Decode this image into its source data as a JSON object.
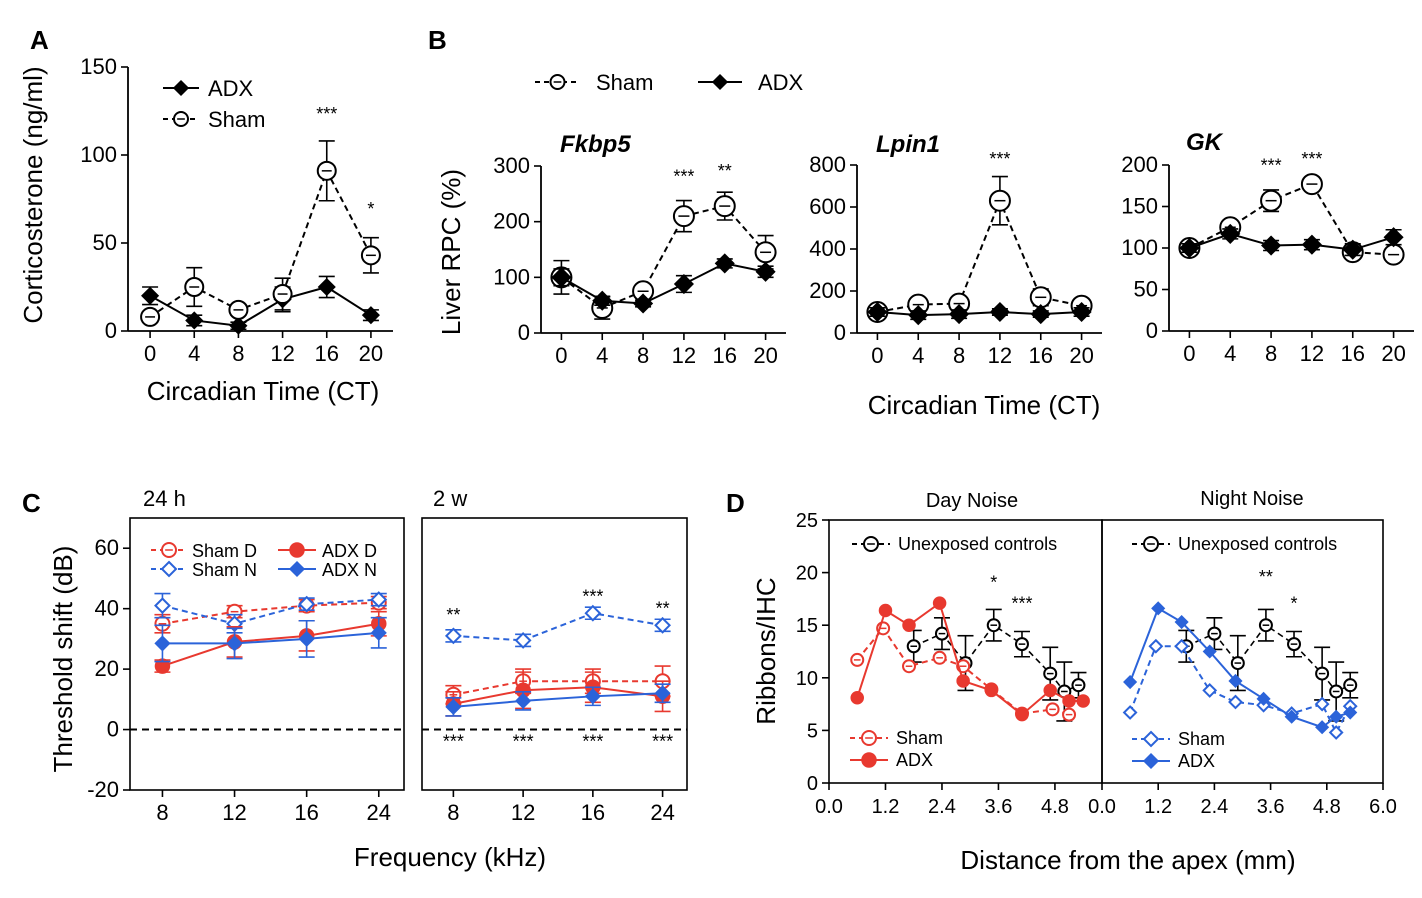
{
  "colors": {
    "black": "#000000",
    "red": "#e8392f",
    "blue": "#2b63d9"
  },
  "panel_labels": {
    "A": "A",
    "B": "B",
    "C": "C",
    "D": "D"
  },
  "shared": {
    "circadian_xlabel": "Circadian Time (CT)",
    "liver_ylabel": "Liver RPC (%)",
    "frequency_xlabel": "Frequency (kHz)",
    "apex_xlabel": "Distance from the apex (mm)",
    "legend_sham": "Sham",
    "legend_adx": "ADX"
  },
  "chart_data": [
    {
      "id": "A",
      "type": "line",
      "xlabel": "Circadian Time (CT)",
      "ylabel": "Corticosterone (ng/ml)",
      "xlim": [
        -2,
        22
      ],
      "ylim": [
        0,
        150
      ],
      "xticks": [
        0,
        4,
        8,
        12,
        16,
        20
      ],
      "yticks": [
        0,
        50,
        100,
        150
      ],
      "legend": [
        "ADX",
        "Sham"
      ],
      "series": [
        {
          "name": "ADX",
          "x": [
            0,
            4,
            8,
            12,
            16,
            20
          ],
          "values": [
            20,
            6,
            3,
            18,
            25,
            9
          ],
          "err": [
            5,
            3,
            2,
            7,
            6,
            3
          ]
        },
        {
          "name": "Sham",
          "x": [
            0,
            4,
            8,
            12,
            16,
            20
          ],
          "values": [
            8,
            25,
            12,
            21,
            91,
            43
          ],
          "err": [
            3,
            11,
            3,
            9,
            17,
            10
          ]
        }
      ],
      "annotations": [
        {
          "x": 16,
          "y": 120,
          "text": "***"
        },
        {
          "x": 20,
          "y": 66,
          "text": "*"
        }
      ]
    },
    {
      "id": "B1",
      "type": "line",
      "gene": "Fkbp5",
      "ylabel": "Liver RPC (%)",
      "xlim": [
        -2,
        22
      ],
      "ylim": [
        0,
        300
      ],
      "xticks": [
        0,
        4,
        8,
        12,
        16,
        20
      ],
      "yticks": [
        0,
        100,
        200,
        300
      ],
      "series": [
        {
          "name": "Sham",
          "x": [
            0,
            4,
            8,
            12,
            16,
            20
          ],
          "values": [
            100,
            45,
            75,
            210,
            228,
            145
          ],
          "err": [
            30,
            20,
            12,
            28,
            25,
            30
          ]
        },
        {
          "name": "ADX",
          "x": [
            0,
            4,
            8,
            12,
            16,
            20
          ],
          "values": [
            100,
            58,
            53,
            88,
            125,
            110
          ],
          "err": [
            15,
            8,
            6,
            15,
            8,
            10
          ]
        }
      ],
      "annotations": [
        {
          "x": 12,
          "y": 270,
          "text": "***"
        },
        {
          "x": 16,
          "y": 280,
          "text": "**"
        }
      ]
    },
    {
      "id": "B2",
      "type": "line",
      "gene": "Lpin1",
      "xlim": [
        -2,
        22
      ],
      "ylim": [
        0,
        800
      ],
      "xticks": [
        0,
        4,
        8,
        12,
        16,
        20
      ],
      "yticks": [
        0,
        200,
        400,
        600,
        800
      ],
      "series": [
        {
          "name": "Sham",
          "x": [
            0,
            4,
            8,
            12,
            16,
            20
          ],
          "values": [
            100,
            135,
            140,
            630,
            170,
            130
          ],
          "err": [
            15,
            15,
            20,
            115,
            40,
            15
          ]
        },
        {
          "name": "ADX",
          "x": [
            0,
            4,
            8,
            12,
            16,
            20
          ],
          "values": [
            100,
            85,
            90,
            100,
            90,
            100
          ],
          "err": [
            20,
            20,
            20,
            15,
            15,
            20
          ]
        }
      ],
      "annotations": [
        {
          "x": 12,
          "y": 800,
          "text": "***"
        }
      ]
    },
    {
      "id": "B3",
      "type": "line",
      "gene": "GK",
      "xlim": [
        -2,
        22
      ],
      "ylim": [
        0,
        200
      ],
      "xticks": [
        0,
        4,
        8,
        12,
        16,
        20
      ],
      "yticks": [
        0,
        50,
        100,
        150,
        200
      ],
      "series": [
        {
          "name": "Sham",
          "x": [
            0,
            4,
            8,
            12,
            16,
            20
          ],
          "values": [
            100,
            125,
            157,
            177,
            95,
            92
          ],
          "err": [
            5,
            5,
            13,
            5,
            5,
            5
          ]
        },
        {
          "name": "ADX",
          "x": [
            0,
            4,
            8,
            12,
            16,
            20
          ],
          "values": [
            100,
            117,
            103,
            104,
            98,
            113
          ],
          "err": [
            5,
            6,
            6,
            6,
            7,
            9
          ]
        }
      ],
      "annotations": [
        {
          "x": 8,
          "y": 192,
          "text": "***"
        },
        {
          "x": 12,
          "y": 200,
          "text": "***"
        }
      ]
    },
    {
      "id": "C1",
      "type": "line",
      "title": "24 h",
      "ylabel": "Threshold shift (dB)",
      "xlim": [
        -0.45,
        3.35
      ],
      "ylim": [
        -20,
        70
      ],
      "xticks": [
        8,
        12,
        16,
        24
      ],
      "yticks": [
        -20,
        0,
        20,
        40,
        60
      ],
      "zero_line": true,
      "legend": [
        "Sham D",
        "Sham N",
        "ADX D",
        "ADX N"
      ],
      "series": [
        {
          "name": "Sham D",
          "x": [
            8,
            12,
            16,
            24
          ],
          "values": [
            35,
            39,
            41,
            42
          ],
          "err": [
            3,
            2,
            2,
            2
          ]
        },
        {
          "name": "Sham N",
          "x": [
            8,
            12,
            16,
            24
          ],
          "values": [
            41,
            35,
            41.5,
            43
          ],
          "err": [
            4,
            3,
            2,
            2
          ]
        },
        {
          "name": "ADX D",
          "x": [
            8,
            12,
            16,
            24
          ],
          "values": [
            21,
            29,
            31,
            35
          ],
          "err": [
            2,
            5,
            5,
            4
          ]
        },
        {
          "name": "ADX N",
          "x": [
            8,
            12,
            16,
            24
          ],
          "values": [
            28.5,
            28.5,
            30,
            32
          ],
          "err": [
            6,
            5,
            6,
            5
          ]
        }
      ],
      "annotations": []
    },
    {
      "id": "C2",
      "type": "line",
      "title": "2 w",
      "xlim": [
        -0.45,
        3.35
      ],
      "ylim": [
        -20,
        70
      ],
      "xticks": [
        8,
        12,
        16,
        24
      ],
      "zero_line": true,
      "series": [
        {
          "name": "Sham D",
          "x": [
            8,
            12,
            16,
            24
          ],
          "values": [
            11.5,
            16,
            16,
            16
          ],
          "err": [
            3,
            4,
            4,
            5
          ]
        },
        {
          "name": "Sham N",
          "x": [
            8,
            12,
            16,
            24
          ],
          "values": [
            31,
            29.5,
            38.5,
            34.5
          ],
          "err": [
            2,
            2,
            2,
            2
          ]
        },
        {
          "name": "ADX D",
          "x": [
            8,
            12,
            16,
            24
          ],
          "values": [
            8.5,
            13,
            14,
            11
          ],
          "err": [
            4,
            6,
            5,
            5
          ]
        },
        {
          "name": "ADX N",
          "x": [
            8,
            12,
            16,
            24
          ],
          "values": [
            7.5,
            9.5,
            11,
            12
          ],
          "err": [
            3,
            3,
            3,
            3
          ]
        }
      ],
      "annotations": [
        {
          "x": 8,
          "y": 36,
          "text": "**"
        },
        {
          "x": 16,
          "y": 42,
          "text": "***"
        },
        {
          "x": 24,
          "y": 38,
          "text": "**"
        },
        {
          "x": 8,
          "y": -6,
          "text": "***"
        },
        {
          "x": 12,
          "y": -6,
          "text": "***"
        },
        {
          "x": 16,
          "y": -6,
          "text": "***"
        },
        {
          "x": 24,
          "y": -6,
          "text": "***"
        }
      ]
    },
    {
      "id": "D1",
      "type": "line",
      "title": "Day Noise",
      "ylabel": "Ribbons/IHC",
      "xlim": [
        0,
        5.8
      ],
      "ylim": [
        0,
        25
      ],
      "xticks": [
        0.0,
        1.2,
        2.4,
        3.6,
        4.8
      ],
      "yticks": [
        0,
        5,
        10,
        15,
        20,
        25
      ],
      "legend": [
        "Unexposed controls",
        "Sham",
        "ADX"
      ],
      "series": [
        {
          "name": "Unexposed controls",
          "x": [
            1.8,
            2.4,
            2.9,
            3.5,
            4.1,
            4.7,
            5.0,
            5.3
          ],
          "values": [
            13.0,
            14.2,
            11.4,
            15.0,
            13.2,
            10.4,
            8.7,
            9.3
          ],
          "err": [
            1.5,
            1.5,
            2.6,
            1.5,
            1.2,
            2.5,
            2.8,
            1.2
          ]
        },
        {
          "name": "Sham",
          "x": [
            0.6,
            1.15,
            1.7,
            2.35,
            2.85,
            3.45,
            4.1,
            4.75,
            5.1
          ],
          "values": [
            11.7,
            14.7,
            11.1,
            11.9,
            11.1,
            8.9,
            6.6,
            7.0,
            6.5
          ]
        },
        {
          "name": "ADX",
          "x": [
            0.6,
            1.2,
            1.7,
            2.35,
            2.85,
            3.45,
            4.1,
            4.7,
            5.1,
            5.4
          ],
          "values": [
            8.1,
            16.4,
            15.0,
            17.1,
            9.7,
            8.8,
            6.5,
            8.8,
            7.8,
            7.8
          ]
        }
      ],
      "annotations": [
        {
          "x": 3.5,
          "y": 18.5,
          "text": "*"
        },
        {
          "x": 4.1,
          "y": 16.5,
          "text": "***"
        }
      ]
    },
    {
      "id": "D2",
      "type": "line",
      "title": "Night Noise",
      "xlim": [
        0,
        6.0
      ],
      "ylim": [
        0,
        25
      ],
      "xticks": [
        0.0,
        1.2,
        2.4,
        3.6,
        4.8,
        6.0
      ],
      "legend": [
        "Unexposed controls",
        "Sham",
        "ADX"
      ],
      "series": [
        {
          "name": "Unexposed controls",
          "x": [
            1.8,
            2.4,
            2.9,
            3.5,
            4.1,
            4.7,
            5.0,
            5.3
          ],
          "values": [
            13.0,
            14.2,
            11.4,
            15.0,
            13.2,
            10.4,
            8.7,
            9.3
          ],
          "err": [
            1.5,
            1.5,
            2.6,
            1.5,
            1.2,
            2.5,
            2.8,
            1.2
          ]
        },
        {
          "name": "Sham",
          "x": [
            0.6,
            1.15,
            1.7,
            2.3,
            2.85,
            3.45,
            4.05,
            4.7,
            5.0,
            5.3
          ],
          "values": [
            6.7,
            13.0,
            13.0,
            8.8,
            7.7,
            7.4,
            6.6,
            7.5,
            4.8,
            7.3
          ]
        },
        {
          "name": "ADX",
          "x": [
            0.6,
            1.2,
            1.7,
            2.3,
            2.85,
            3.45,
            4.05,
            4.7,
            5.0,
            5.3
          ],
          "values": [
            9.6,
            16.6,
            15.3,
            12.5,
            9.7,
            8.0,
            6.3,
            5.3,
            6.3,
            6.7
          ]
        }
      ],
      "annotations": [
        {
          "x": 3.5,
          "y": 19.0,
          "text": "**"
        },
        {
          "x": 4.1,
          "y": 16.5,
          "text": "*"
        }
      ]
    }
  ]
}
